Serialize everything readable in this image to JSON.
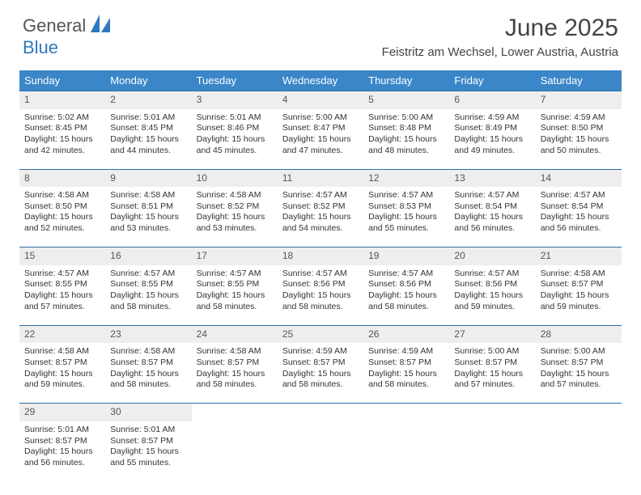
{
  "brand": {
    "part1": "General",
    "part2": "Blue"
  },
  "title": "June 2025",
  "location": "Feistritz am Wechsel, Lower Austria, Austria",
  "colors": {
    "header_bg": "#3a86c8",
    "row_divider": "#2f6da8",
    "daynum_bg": "#eeeeee",
    "brand_blue": "#2f78bd"
  },
  "typography": {
    "title_fontsize": 30,
    "location_fontsize": 15,
    "dayheader_fontsize": 13,
    "body_fontsize": 10.5
  },
  "day_names": [
    "Sunday",
    "Monday",
    "Tuesday",
    "Wednesday",
    "Thursday",
    "Friday",
    "Saturday"
  ],
  "days": [
    {
      "n": "1",
      "sr": "5:02 AM",
      "ss": "8:45 PM",
      "dl": "15 hours and 42 minutes."
    },
    {
      "n": "2",
      "sr": "5:01 AM",
      "ss": "8:45 PM",
      "dl": "15 hours and 44 minutes."
    },
    {
      "n": "3",
      "sr": "5:01 AM",
      "ss": "8:46 PM",
      "dl": "15 hours and 45 minutes."
    },
    {
      "n": "4",
      "sr": "5:00 AM",
      "ss": "8:47 PM",
      "dl": "15 hours and 47 minutes."
    },
    {
      "n": "5",
      "sr": "5:00 AM",
      "ss": "8:48 PM",
      "dl": "15 hours and 48 minutes."
    },
    {
      "n": "6",
      "sr": "4:59 AM",
      "ss": "8:49 PM",
      "dl": "15 hours and 49 minutes."
    },
    {
      "n": "7",
      "sr": "4:59 AM",
      "ss": "8:50 PM",
      "dl": "15 hours and 50 minutes."
    },
    {
      "n": "8",
      "sr": "4:58 AM",
      "ss": "8:50 PM",
      "dl": "15 hours and 52 minutes."
    },
    {
      "n": "9",
      "sr": "4:58 AM",
      "ss": "8:51 PM",
      "dl": "15 hours and 53 minutes."
    },
    {
      "n": "10",
      "sr": "4:58 AM",
      "ss": "8:52 PM",
      "dl": "15 hours and 53 minutes."
    },
    {
      "n": "11",
      "sr": "4:57 AM",
      "ss": "8:52 PM",
      "dl": "15 hours and 54 minutes."
    },
    {
      "n": "12",
      "sr": "4:57 AM",
      "ss": "8:53 PM",
      "dl": "15 hours and 55 minutes."
    },
    {
      "n": "13",
      "sr": "4:57 AM",
      "ss": "8:54 PM",
      "dl": "15 hours and 56 minutes."
    },
    {
      "n": "14",
      "sr": "4:57 AM",
      "ss": "8:54 PM",
      "dl": "15 hours and 56 minutes."
    },
    {
      "n": "15",
      "sr": "4:57 AM",
      "ss": "8:55 PM",
      "dl": "15 hours and 57 minutes."
    },
    {
      "n": "16",
      "sr": "4:57 AM",
      "ss": "8:55 PM",
      "dl": "15 hours and 58 minutes."
    },
    {
      "n": "17",
      "sr": "4:57 AM",
      "ss": "8:55 PM",
      "dl": "15 hours and 58 minutes."
    },
    {
      "n": "18",
      "sr": "4:57 AM",
      "ss": "8:56 PM",
      "dl": "15 hours and 58 minutes."
    },
    {
      "n": "19",
      "sr": "4:57 AM",
      "ss": "8:56 PM",
      "dl": "15 hours and 58 minutes."
    },
    {
      "n": "20",
      "sr": "4:57 AM",
      "ss": "8:56 PM",
      "dl": "15 hours and 59 minutes."
    },
    {
      "n": "21",
      "sr": "4:58 AM",
      "ss": "8:57 PM",
      "dl": "15 hours and 59 minutes."
    },
    {
      "n": "22",
      "sr": "4:58 AM",
      "ss": "8:57 PM",
      "dl": "15 hours and 59 minutes."
    },
    {
      "n": "23",
      "sr": "4:58 AM",
      "ss": "8:57 PM",
      "dl": "15 hours and 58 minutes."
    },
    {
      "n": "24",
      "sr": "4:58 AM",
      "ss": "8:57 PM",
      "dl": "15 hours and 58 minutes."
    },
    {
      "n": "25",
      "sr": "4:59 AM",
      "ss": "8:57 PM",
      "dl": "15 hours and 58 minutes."
    },
    {
      "n": "26",
      "sr": "4:59 AM",
      "ss": "8:57 PM",
      "dl": "15 hours and 58 minutes."
    },
    {
      "n": "27",
      "sr": "5:00 AM",
      "ss": "8:57 PM",
      "dl": "15 hours and 57 minutes."
    },
    {
      "n": "28",
      "sr": "5:00 AM",
      "ss": "8:57 PM",
      "dl": "15 hours and 57 minutes."
    },
    {
      "n": "29",
      "sr": "5:01 AM",
      "ss": "8:57 PM",
      "dl": "15 hours and 56 minutes."
    },
    {
      "n": "30",
      "sr": "5:01 AM",
      "ss": "8:57 PM",
      "dl": "15 hours and 55 minutes."
    }
  ],
  "labels": {
    "sunrise": "Sunrise:",
    "sunset": "Sunset:",
    "daylight": "Daylight:"
  }
}
